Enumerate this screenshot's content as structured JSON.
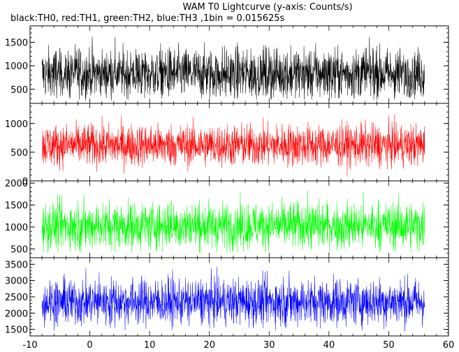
{
  "title": "WAM T0 Lightcurve (y-axis: Counts/s)",
  "subtitle": "black:TH0, red:TH1, green:TH2, blue:TH3 ,1bin = 0.015625s",
  "chart_data": {
    "type": "line",
    "title": "WAM T0 Lightcurve (y-axis: Counts/s)",
    "subtitle": "black:TH0, red:TH1, green:TH2, blue:TH3 ,1bin = 0.015625s",
    "xlim": [
      -10,
      60
    ],
    "x_ticks": [
      "-10",
      "0",
      "10",
      "20",
      "30",
      "40",
      "50",
      "60"
    ],
    "x_range_of_data": [
      -8.0,
      56.0
    ],
    "bin_seconds": 0.015625,
    "grid": false,
    "panels": [
      {
        "name": "TH0",
        "color": "#000000",
        "ylim": [
          200,
          1850
        ],
        "y_ticks": [
          500,
          1000,
          1500
        ],
        "y_tick_labels": [
          "500",
          "1000",
          "1500"
        ],
        "mean": 830,
        "typical_low": 560,
        "typical_high": 1150,
        "min": 260,
        "max": 1820
      },
      {
        "name": "TH1",
        "color": "#ff0000",
        "ylim": [
          0,
          1350
        ],
        "y_ticks": [
          500,
          1000
        ],
        "y_tick_labels": [
          "500",
          "1000"
        ],
        "mean": 620,
        "typical_low": 420,
        "typical_high": 820,
        "min": 60,
        "max": 1300
      },
      {
        "name": "TH2",
        "color": "#00ff00",
        "ylim": [
          300,
          2050
        ],
        "y_ticks": [
          500,
          1000,
          1500,
          2000
        ],
        "y_tick_labels": [
          "500",
          "1000",
          "1500",
          "2000"
        ],
        "mean": 1030,
        "typical_low": 740,
        "typical_high": 1330,
        "min": 400,
        "max": 1990
      },
      {
        "name": "TH3",
        "color": "#0000ff",
        "ylim": [
          1300,
          3700
        ],
        "y_ticks": [
          1500,
          2000,
          2500,
          3000,
          3500
        ],
        "y_tick_labels": [
          "1500",
          "2000",
          "2500",
          "3000",
          "3500"
        ],
        "mean": 2350,
        "typical_low": 1960,
        "typical_high": 2740,
        "min": 1420,
        "max": 3620
      }
    ],
    "shared_tick_label_between_panel_1_and_2": "0"
  }
}
